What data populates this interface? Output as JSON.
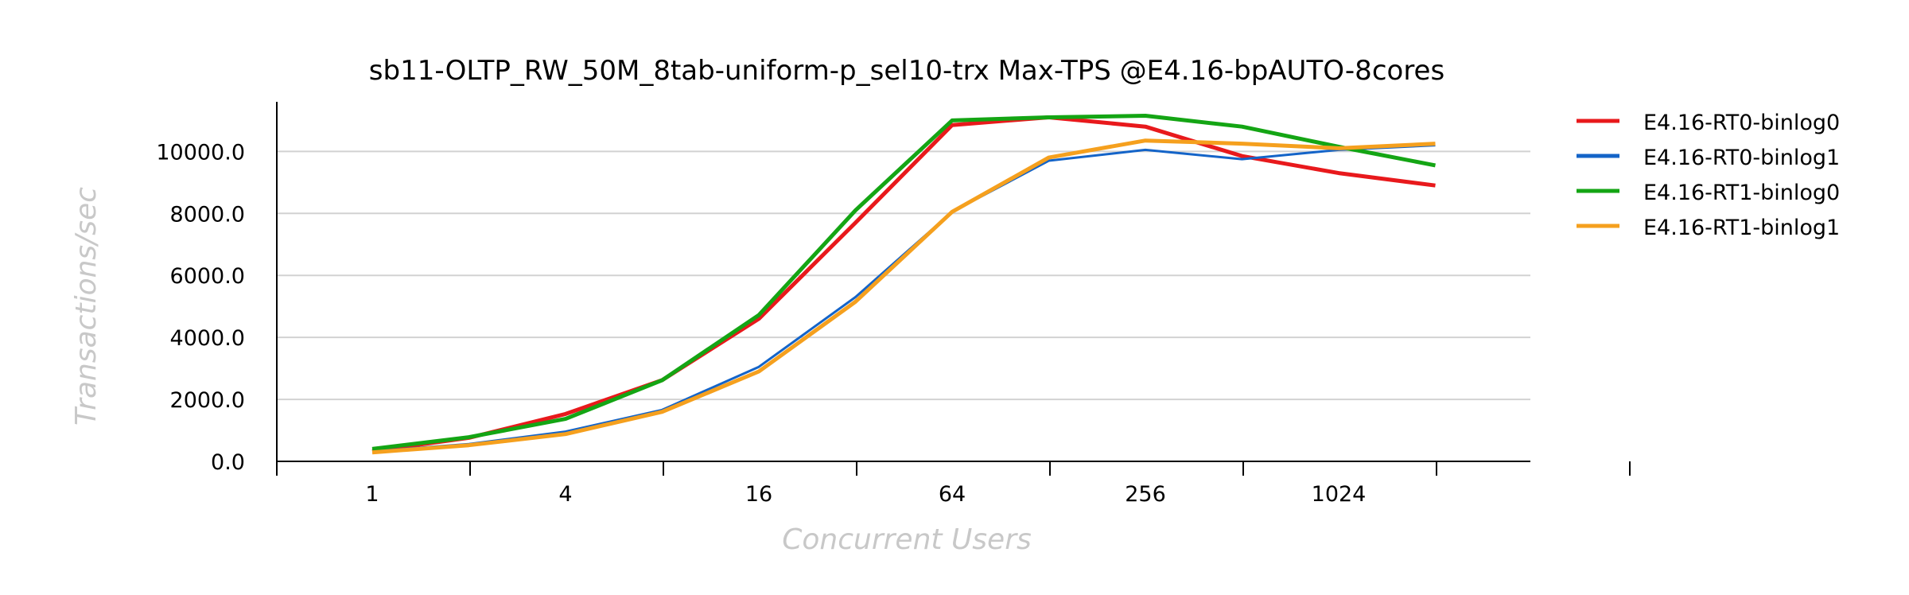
{
  "chart_data": {
    "type": "line",
    "title": "sb11-OLTP_RW_50M_8tab-uniform-p_sel10-trx Max-TPS @E4.16-bpAUTO-8cores",
    "xlabel": "Concurrent Users",
    "ylabel": "Transactions/sec",
    "x": [
      1,
      2,
      4,
      8,
      16,
      32,
      64,
      128,
      256,
      512,
      1024,
      2048
    ],
    "x_tick_labels": [
      "1",
      "4",
      "16",
      "64",
      "256",
      "1024"
    ],
    "x_tick_values": [
      1,
      4,
      16,
      64,
      256,
      1024
    ],
    "x_scale": "log2",
    "y_tick_labels": [
      "0.0",
      "2000.0",
      "4000.0",
      "6000.0",
      "8000.0",
      "10000.0"
    ],
    "ylim": [
      0,
      11600
    ],
    "grid": "horizontal",
    "legend_position": "right",
    "series": [
      {
        "name": "E4.16-RT0-binlog0",
        "color": "#e8191c",
        "values": [
          330,
          760,
          1530,
          2620,
          4600,
          7700,
          10850,
          11100,
          10800,
          9850,
          9300,
          8900
        ]
      },
      {
        "name": "E4.16-RT0-binlog1",
        "color": "#1464c8",
        "values": [
          320,
          560,
          960,
          1660,
          3050,
          5300,
          8050,
          9700,
          10050,
          9750,
          10050,
          10200
        ]
      },
      {
        "name": "E4.16-RT1-binlog0",
        "color": "#14a514",
        "values": [
          400,
          780,
          1370,
          2620,
          4720,
          8100,
          11000,
          11100,
          11150,
          10800,
          10150,
          9550
        ]
      },
      {
        "name": "E4.16-RT1-binlog1",
        "color": "#f5a01e",
        "values": [
          290,
          520,
          880,
          1600,
          2900,
          5150,
          8050,
          9800,
          10350,
          10250,
          10100,
          10250
        ]
      }
    ]
  }
}
